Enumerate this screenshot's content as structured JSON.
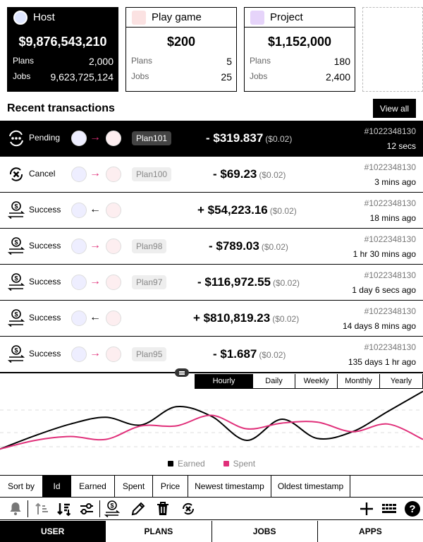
{
  "cards": [
    {
      "title": "Host",
      "amount": "$9,876,543,210",
      "plans_label": "Plans",
      "plans": "2,000",
      "jobs_label": "Jobs",
      "jobs": "9,623,725,124",
      "logo_color": "#7a8be0"
    },
    {
      "title": "Play game",
      "amount": "$200",
      "plans_label": "Plans",
      "plans": "5",
      "jobs_label": "Jobs",
      "jobs": "25",
      "logo_color": "#e0a0a0"
    },
    {
      "title": "Project",
      "amount": "$1,152,000",
      "plans_label": "Plans",
      "plans": "180",
      "jobs_label": "Jobs",
      "jobs": "2,400",
      "logo_color": "#b488e0"
    }
  ],
  "recent": {
    "title": "Recent transactions",
    "view_all": "View all"
  },
  "transactions": [
    {
      "status": "Pending",
      "icon": "pending-icon",
      "direction": "→",
      "plan": "Plan101",
      "amount": "- $319.837",
      "fee": "($0.02)",
      "id": "#1022348130",
      "time": "12 secs"
    },
    {
      "status": "Cancel",
      "icon": "cancel-icon",
      "direction": "→",
      "plan": "Plan100",
      "amount": "- $69.23",
      "fee": "($0.02)",
      "id": "#1022348130",
      "time": "3 mins ago"
    },
    {
      "status": "Success",
      "icon": "dollar-transfer-icon",
      "direction": "←",
      "plan": "",
      "amount": "+ $54,223.16",
      "fee": "($0.02)",
      "id": "#1022348130",
      "time": "18 mins ago"
    },
    {
      "status": "Success",
      "icon": "dollar-transfer-icon",
      "direction": "→",
      "plan": "Plan98",
      "amount": "- $789.03",
      "fee": "($0.02)",
      "id": "#1022348130",
      "time": "1 hr 30 mins ago"
    },
    {
      "status": "Success",
      "icon": "dollar-transfer-icon",
      "direction": "→",
      "plan": "Plan97",
      "amount": "- $116,972.55",
      "fee": "($0.02)",
      "id": "#1022348130",
      "time": "1 day 6 secs ago"
    },
    {
      "status": "Success",
      "icon": "dollar-transfer-icon",
      "direction": "←",
      "plan": "",
      "amount": "+ $810,819.23",
      "fee": "($0.02)",
      "id": "#1022348130",
      "time": "14 days 8 mins ago"
    },
    {
      "status": "Success",
      "icon": "dollar-transfer-icon",
      "direction": "→",
      "plan": "Plan95",
      "amount": "- $1.687",
      "fee": "($0.02)",
      "id": "#1022348130",
      "time": "135 days 1 hr ago"
    }
  ],
  "periods": [
    "Hourly",
    "Daily",
    "Weekly",
    "Monthly",
    "Yearly"
  ],
  "active_period": "Hourly",
  "chart_data": {
    "type": "line",
    "title": "",
    "xlabel": "",
    "ylabel": "",
    "grid": true,
    "legend": "bottom-center",
    "x": [
      0,
      1,
      2,
      3,
      4,
      5,
      6,
      7,
      8,
      9,
      10,
      11,
      12
    ],
    "series": [
      {
        "name": "Earned",
        "color": "#000000",
        "values": [
          2,
          16,
          28,
          35,
          27,
          46,
          36,
          11,
          33,
          13,
          20,
          41,
          62
        ]
      },
      {
        "name": "Spent",
        "color": "#e0307a",
        "values": [
          2,
          11,
          15,
          12,
          26,
          26,
          37,
          23,
          29,
          30,
          20,
          28,
          12
        ]
      }
    ],
    "ylim": [
      0,
      66
    ]
  },
  "sort": {
    "label": "Sort by",
    "options": [
      "Id",
      "Earned",
      "Spent",
      "Price",
      "Newest timestamp",
      "Oldest timestamp"
    ],
    "active": "Id"
  },
  "nav": {
    "tabs": [
      "USER",
      "PLANS",
      "JOBS",
      "APPS"
    ],
    "active": "USER"
  }
}
